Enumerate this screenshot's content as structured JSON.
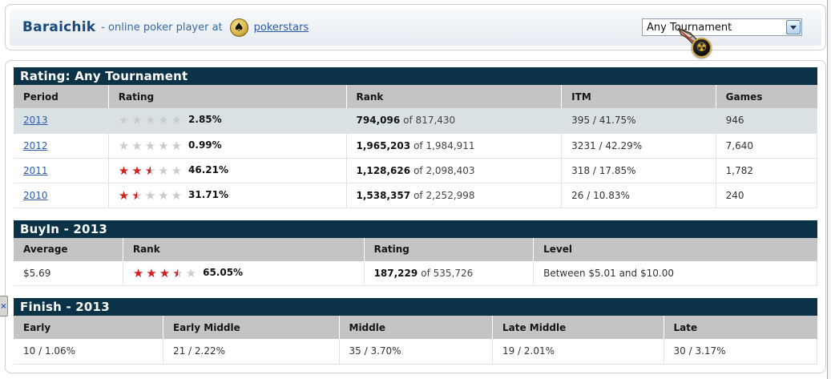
{
  "header": {
    "player_name": "Baraichik",
    "subtitle": "- online poker player at",
    "site_link": "pokerstars",
    "tournament_select": {
      "value": "Any Tournament"
    }
  },
  "rating_section": {
    "title": "Rating: Any Tournament",
    "columns": [
      "Period",
      "Rating",
      "Rank",
      "ITM",
      "Games"
    ],
    "rows": [
      {
        "period": "2013",
        "stars": 0,
        "rating_pct": "2.85%",
        "rank_main": "794,096",
        "rank_of": "of 817,430",
        "itm": "395 / 41.75%",
        "games": "946",
        "highlighted": true
      },
      {
        "period": "2012",
        "stars": 0,
        "rating_pct": "0.99%",
        "rank_main": "1,965,203",
        "rank_of": "of 1,984,911",
        "itm": "3231 / 42.29%",
        "games": "7,640",
        "highlighted": false
      },
      {
        "period": "2011",
        "stars": 2.5,
        "rating_pct": "46.21%",
        "rank_main": "1,128,626",
        "rank_of": "of 2,098,403",
        "itm": "318 / 17.85%",
        "games": "1,782",
        "highlighted": false
      },
      {
        "period": "2010",
        "stars": 1.5,
        "rating_pct": "31.71%",
        "rank_main": "1,538,357",
        "rank_of": "of 2,252,998",
        "itm": "26 / 10.83%",
        "games": "240",
        "highlighted": false
      }
    ]
  },
  "buyin_section": {
    "title": "BuyIn - 2013",
    "columns": [
      "Average",
      "Rank",
      "Rating",
      "Level"
    ],
    "row": {
      "average": "$5.69",
      "stars": 3.5,
      "rank_pct": "65.05%",
      "rating_main": "187,229",
      "rating_of": "of 535,726",
      "level": "Between $5.01 and $10.00"
    }
  },
  "finish_section": {
    "title": "Finish - 2013",
    "columns": [
      "Early",
      "Early Middle",
      "Middle",
      "Late Middle",
      "Late"
    ],
    "values": [
      "10 / 1.06%",
      "21 / 2.22%",
      "35 / 3.70%",
      "19 / 2.01%",
      "30 / 3.17%"
    ]
  },
  "colors": {
    "section_bar": "#0b3246",
    "table_header": "#c4c4c4",
    "highlight_row": "#dae1e5",
    "link": "#2b5cab",
    "star_filled": "#d21e1e",
    "star_empty": "#c9ccce"
  },
  "icons": {
    "pokerstars_logo": "spade",
    "dropdown_arrow": "caret-down",
    "cursor_medallion": "radioactive"
  }
}
